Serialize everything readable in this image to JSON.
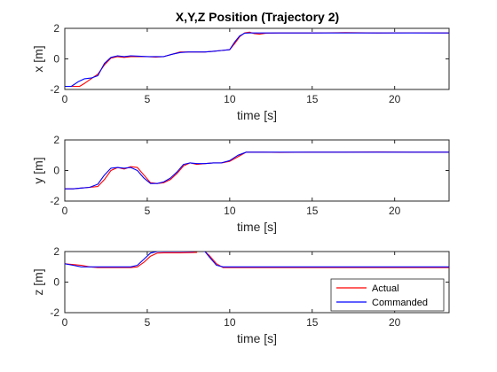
{
  "title": "X,Y,Z Position (Trajectory 2)",
  "colors": {
    "actual": "#ff0000",
    "commanded": "#0000ff",
    "axis": "#262626"
  },
  "legend": {
    "location": "bottom-right of third subplot",
    "entries": [
      "Actual",
      "Commanded"
    ]
  },
  "chart_data": [
    {
      "type": "line",
      "title": "X,Y,Z Position (Trajectory 2)",
      "xlabel": "time [s]",
      "ylabel": "x [m]",
      "xlim": [
        0,
        23.3
      ],
      "ylim": [
        -2,
        2
      ],
      "xticks": [
        "0",
        "5",
        "10",
        "15",
        "20"
      ],
      "yticks": [
        "-2",
        "0",
        "2"
      ],
      "series": [
        {
          "name": "Actual",
          "color": "#ff0000",
          "x": [
            0,
            0.5,
            0.9,
            1.2,
            1.6,
            2.0,
            2.4,
            2.8,
            3.2,
            3.6,
            4.0,
            4.5,
            5.0,
            5.5,
            6.0,
            6.5,
            7.0,
            7.5,
            8.0,
            8.5,
            9.0,
            9.5,
            10.0,
            10.3,
            10.6,
            10.9,
            11.2,
            11.5,
            11.8,
            12.2,
            13,
            15,
            17,
            19,
            21,
            23.3
          ],
          "y": [
            -1.8,
            -1.8,
            -1.8,
            -1.6,
            -1.3,
            -1.0,
            -0.4,
            0.05,
            0.15,
            0.1,
            0.15,
            0.15,
            0.15,
            0.12,
            0.15,
            0.3,
            0.45,
            0.45,
            0.45,
            0.45,
            0.5,
            0.55,
            0.6,
            1.0,
            1.45,
            1.7,
            1.75,
            1.65,
            1.62,
            1.68,
            1.7,
            1.7,
            1.72,
            1.7,
            1.71,
            1.7
          ]
        },
        {
          "name": "Commanded",
          "color": "#0000ff",
          "x": [
            0,
            0.4,
            0.8,
            1.2,
            1.6,
            2.0,
            2.4,
            2.8,
            3.2,
            3.6,
            4.0,
            4.5,
            5.0,
            5.5,
            6.0,
            6.5,
            7.0,
            7.5,
            8.0,
            8.5,
            9.0,
            9.5,
            10.0,
            10.3,
            10.6,
            10.9,
            11.2,
            11.5,
            11.8,
            12.2,
            13,
            15,
            17,
            19,
            21,
            23.3
          ],
          "y": [
            -1.8,
            -1.8,
            -1.5,
            -1.3,
            -1.25,
            -1.1,
            -0.3,
            0.1,
            0.2,
            0.15,
            0.2,
            0.18,
            0.15,
            0.15,
            0.15,
            0.3,
            0.42,
            0.45,
            0.45,
            0.45,
            0.5,
            0.55,
            0.6,
            1.1,
            1.5,
            1.68,
            1.7,
            1.7,
            1.7,
            1.7,
            1.7,
            1.7,
            1.7,
            1.7,
            1.7,
            1.7
          ]
        }
      ]
    },
    {
      "type": "line",
      "title": "",
      "xlabel": "time [s]",
      "ylabel": "y [m]",
      "xlim": [
        0,
        23.3
      ],
      "ylim": [
        -2,
        2
      ],
      "xticks": [
        "0",
        "5",
        "10",
        "15",
        "20"
      ],
      "yticks": [
        "-2",
        "0",
        "2"
      ],
      "series": [
        {
          "name": "Actual",
          "color": "#ff0000",
          "x": [
            0,
            0.5,
            1.0,
            1.5,
            2.0,
            2.4,
            2.8,
            3.2,
            3.6,
            4.0,
            4.4,
            4.8,
            5.2,
            5.6,
            6.0,
            6.4,
            6.8,
            7.2,
            7.6,
            8.0,
            8.5,
            9.0,
            9.5,
            10.0,
            10.5,
            11.0,
            11.5,
            12,
            13,
            15,
            17,
            19,
            21,
            23.3
          ],
          "y": [
            -1.2,
            -1.2,
            -1.15,
            -1.1,
            -1.05,
            -0.6,
            0.0,
            0.2,
            0.1,
            0.25,
            0.2,
            -0.3,
            -0.8,
            -0.85,
            -0.8,
            -0.6,
            -0.2,
            0.3,
            0.5,
            0.4,
            0.45,
            0.5,
            0.5,
            0.6,
            0.9,
            1.2,
            1.2,
            1.2,
            1.18,
            1.2,
            1.2,
            1.22,
            1.2,
            1.2
          ]
        },
        {
          "name": "Commanded",
          "color": "#0000ff",
          "x": [
            0,
            0.5,
            1.0,
            1.5,
            2.0,
            2.4,
            2.8,
            3.2,
            3.6,
            4.0,
            4.4,
            4.8,
            5.2,
            5.6,
            6.0,
            6.4,
            6.8,
            7.2,
            7.6,
            8.0,
            8.5,
            9.0,
            9.5,
            10.0,
            10.5,
            11.0,
            11.5,
            12,
            13,
            15,
            17,
            19,
            21,
            23.3
          ],
          "y": [
            -1.2,
            -1.2,
            -1.15,
            -1.1,
            -0.9,
            -0.3,
            0.15,
            0.2,
            0.15,
            0.2,
            0.0,
            -0.5,
            -0.85,
            -0.85,
            -0.75,
            -0.5,
            -0.1,
            0.4,
            0.5,
            0.45,
            0.45,
            0.5,
            0.5,
            0.65,
            1.0,
            1.2,
            1.2,
            1.2,
            1.2,
            1.2,
            1.2,
            1.2,
            1.2,
            1.2
          ]
        }
      ]
    },
    {
      "type": "line",
      "title": "",
      "xlabel": "time [s]",
      "ylabel": "z [m]",
      "xlim": [
        0,
        23.3
      ],
      "ylim": [
        -2,
        2
      ],
      "xticks": [
        "0",
        "5",
        "10",
        "15",
        "20"
      ],
      "yticks": [
        "-2",
        "0",
        "2"
      ],
      "series": [
        {
          "name": "Actual",
          "color": "#ff0000",
          "x": [
            0,
            0.5,
            1.0,
            1.5,
            2.0,
            3.0,
            4.0,
            4.4,
            4.8,
            5.2,
            5.6,
            6.0,
            7.0,
            8.0,
            null,
            8.5,
            8.8,
            9.2,
            9.6,
            10.0,
            11,
            13,
            15,
            17,
            19,
            21,
            23.3
          ],
          "y": [
            1.2,
            1.15,
            1.1,
            1.0,
            0.95,
            0.95,
            0.95,
            1.0,
            1.3,
            1.7,
            1.9,
            1.92,
            1.92,
            1.95,
            null,
            2.0,
            1.7,
            1.2,
            0.95,
            0.95,
            0.95,
            0.95,
            0.95,
            0.95,
            0.95,
            0.95,
            0.95
          ]
        },
        {
          "name": "Commanded",
          "color": "#0000ff",
          "x": [
            0,
            0.5,
            1.0,
            1.5,
            2.0,
            3.0,
            4.0,
            4.4,
            4.8,
            5.2,
            5.6,
            6.0,
            7.0,
            7.8,
            null,
            8.5,
            8.8,
            9.2,
            9.6,
            10.0,
            11,
            13,
            15,
            17,
            19,
            21,
            23.3
          ],
          "y": [
            1.2,
            1.1,
            1.0,
            1.0,
            1.0,
            1.0,
            1.0,
            1.1,
            1.5,
            1.9,
            2.0,
            2.0,
            2.0,
            2.0,
            null,
            2.0,
            1.6,
            1.1,
            1.0,
            1.0,
            1.0,
            1.0,
            1.0,
            1.0,
            1.0,
            1.0,
            1.0
          ]
        }
      ]
    }
  ]
}
